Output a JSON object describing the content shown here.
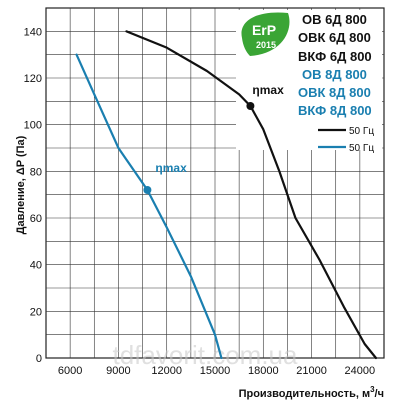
{
  "chart_data": {
    "type": "line",
    "xlabel_main": "Производительность,",
    "xlabel_unit": "м",
    "xlabel_unit_sup": "3",
    "xlabel_unit_tail": "/ч",
    "ylabel": "Давление, ΔP (Па)",
    "x_ticks": [
      "6000",
      "9000",
      "12000",
      "15000",
      "18000",
      "21000",
      "24000"
    ],
    "y_ticks": [
      "0",
      "20",
      "40",
      "60",
      "80",
      "100",
      "120",
      "140"
    ],
    "xlim": [
      4500,
      25500
    ],
    "ylim": [
      0,
      150
    ],
    "grid": true,
    "series": [
      {
        "name": "50 Гц",
        "color": "#111111",
        "x": [
          9500,
          12000,
          14500,
          16500,
          17200,
          18000,
          19000,
          20000,
          21500,
          23000,
          24300,
          25000
        ],
        "y": [
          140,
          133,
          123,
          113,
          108,
          98,
          80,
          60,
          42,
          22,
          6,
          0
        ]
      },
      {
        "name": "50 Гц",
        "color": "#1a7fb0",
        "x": [
          6400,
          7500,
          9000,
          10800,
          12000,
          13500,
          15000,
          15400
        ],
        "y": [
          130,
          113,
          90,
          72,
          56,
          35,
          10,
          0
        ]
      }
    ],
    "annotations": [
      {
        "text": "ηmax",
        "x": 17200,
        "y": 108,
        "color": "#111111"
      },
      {
        "text": "ηmax",
        "x": 10800,
        "y": 72,
        "color": "#1a7fb0"
      }
    ],
    "legend": {
      "placement": "top-right",
      "models_black": [
        "ОВ 6Д 800",
        "ОВК 6Д 800",
        "ВКФ 6Д 800"
      ],
      "models_blue": [
        "ОВ 8Д 800",
        "ОВК 8Д 800",
        "ВКФ 8Д 800"
      ],
      "line_labels": [
        "50 Гц",
        "50 Гц"
      ]
    }
  },
  "badge": {
    "erp_top": "ErP",
    "erp_year": "2015",
    "color": "#3aa535"
  },
  "watermark": "tdfavorit.com.ua"
}
